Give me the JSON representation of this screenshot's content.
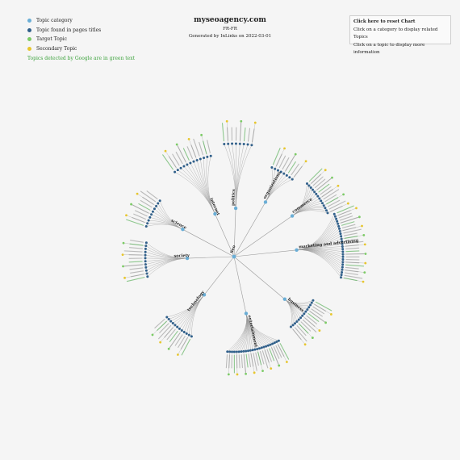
{
  "header": {
    "title": "myseoagency.com",
    "locale": "FR-FR",
    "generated": "Generated by InLinks on 2022-03-01"
  },
  "legend": {
    "items": [
      {
        "label": "Topic category",
        "color": "#6aaed6"
      },
      {
        "label": "Topic found in pages titles",
        "color": "#2f5f8a"
      },
      {
        "label": "Target Topic",
        "color": "#7ccb66"
      },
      {
        "label": "Secondary Topic",
        "color": "#e7c62d"
      }
    ],
    "note": "Topics detected by Google are in green text"
  },
  "panel": {
    "reset": "Click here to reset Chart",
    "line1": "Click on a category to display related Topics",
    "line2": "Click on a topic to display more information"
  },
  "colors": {
    "category": "#6aaed6",
    "titles": "#2f5f8a",
    "target": "#7ccb66",
    "secondary": "#e7c62d",
    "google_text": "#3aa23a",
    "link": "#9a9a9a"
  },
  "tree": {
    "root": "Seo",
    "categories": [
      {
        "name": "marketing and advertising"
      },
      {
        "name": "business"
      },
      {
        "name": "entertainment"
      },
      {
        "name": "technology"
      },
      {
        "name": "society"
      },
      {
        "name": "science"
      },
      {
        "name": "internet"
      },
      {
        "name": "politics"
      },
      {
        "name": "organizations"
      },
      {
        "name": "commerce"
      }
    ]
  }
}
